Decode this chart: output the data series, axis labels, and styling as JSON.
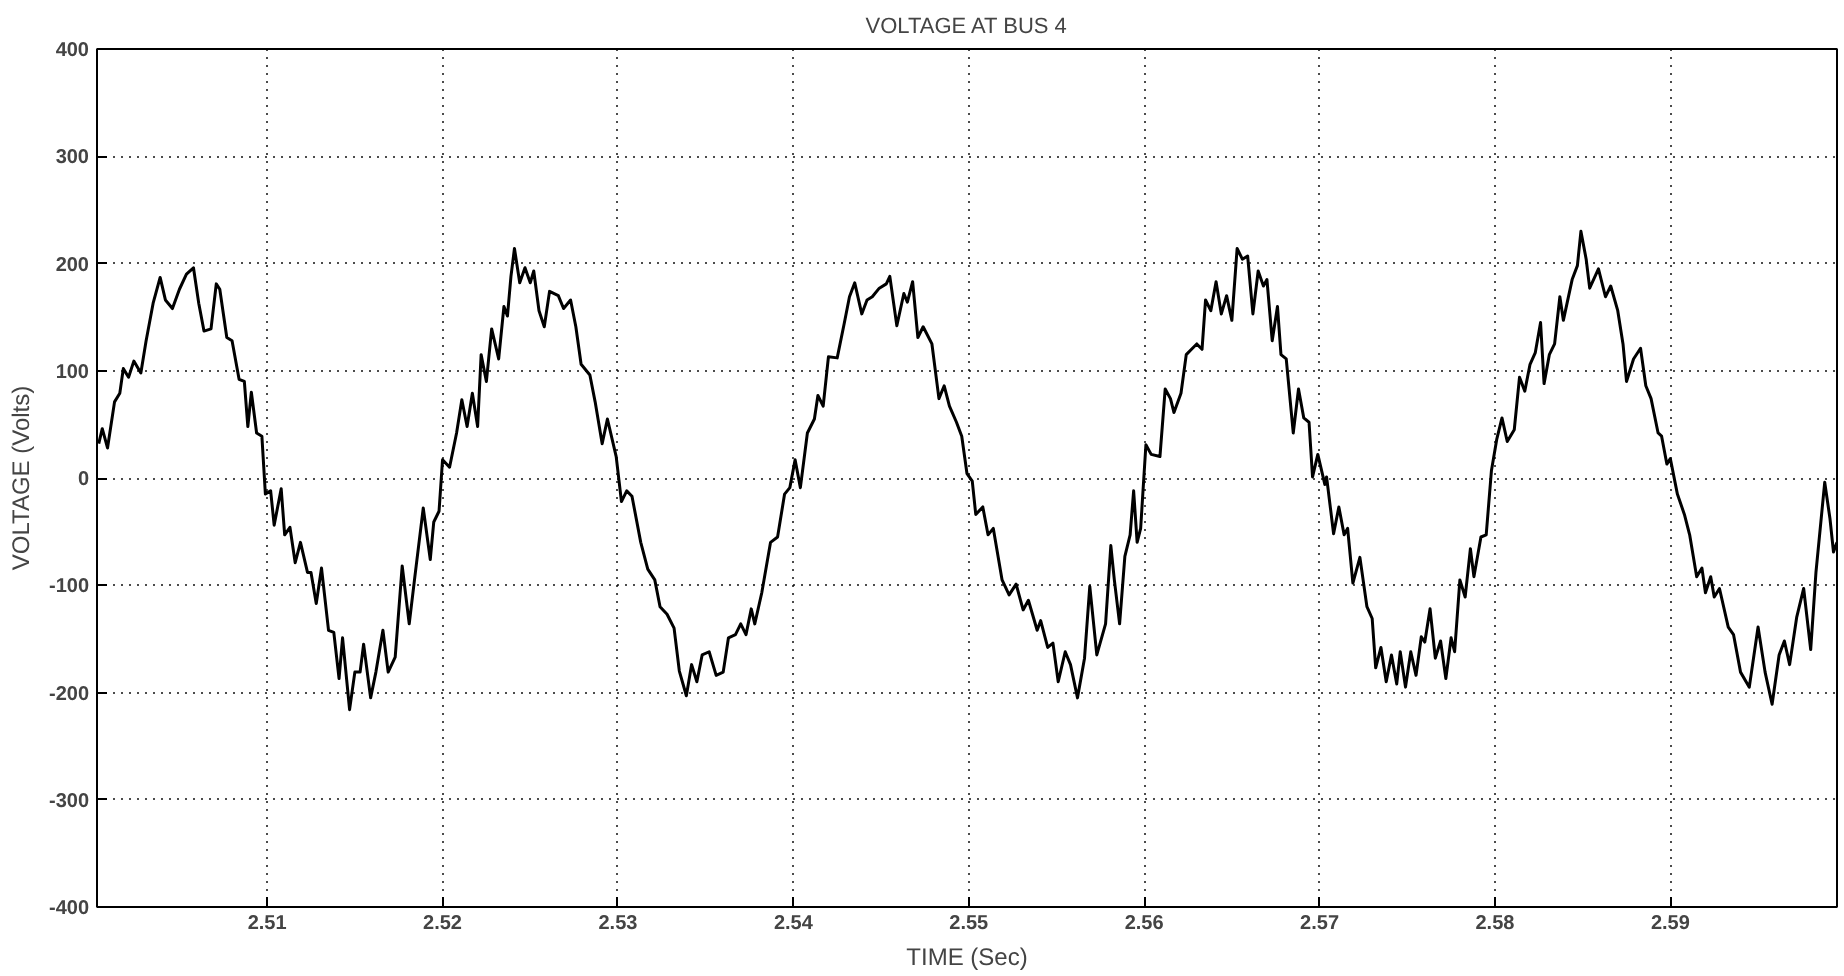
{
  "chart_data": {
    "type": "line",
    "title": "VOLTAGE AT BUS 4",
    "xlabel": "TIME (Sec)",
    "ylabel": "VOLTAGE (Volts)",
    "x": [
      2.5004,
      2.5006,
      2.5009,
      2.5013,
      2.5016,
      2.5018,
      2.5021,
      2.5024,
      2.5028,
      2.5031,
      2.5035,
      2.5039,
      2.5042,
      2.5046,
      2.505,
      2.5054,
      2.5058,
      2.5061,
      2.5064,
      2.5068,
      2.5071,
      2.5073,
      2.5077,
      2.508,
      2.5084,
      2.5087,
      2.5089,
      2.5091,
      2.5094,
      2.5097,
      2.5099,
      2.5102,
      2.5104,
      2.5108,
      2.511,
      2.5113,
      2.5116,
      2.5119,
      2.5123,
      2.5125,
      2.5128,
      2.5131,
      2.5135,
      2.5138,
      2.5141,
      2.5143,
      2.5147,
      2.515,
      2.5153,
      2.5155,
      2.5159,
      2.5162,
      2.5166,
      2.5169,
      2.5173,
      2.5177,
      2.5181,
      2.5184,
      2.5189,
      2.5193,
      2.5195,
      2.5198,
      2.52,
      2.5204,
      2.5208,
      2.5211,
      2.5214,
      2.5217,
      2.522,
      2.5222,
      2.5225,
      2.5228,
      2.5232,
      2.5235,
      2.5237,
      2.5239,
      2.5241,
      2.5244,
      2.5247,
      2.525,
      2.5252,
      2.5255,
      2.5258,
      2.5261,
      2.5266,
      2.5269,
      2.5273,
      2.5276,
      2.5279,
      2.5284,
      2.5287,
      2.5291,
      2.5294,
      2.5299,
      2.5302,
      2.5305,
      2.5308,
      2.5313,
      2.5317,
      2.5321,
      2.5324,
      2.5328,
      2.5332,
      2.5335,
      2.5339,
      2.5342,
      2.5345,
      2.5348,
      2.5352,
      2.5356,
      2.536,
      2.5363,
      2.5367,
      2.537,
      2.5373,
      2.5376,
      2.5378,
      2.5382,
      2.5387,
      2.5391,
      2.5395,
      2.5398,
      2.5401,
      2.5404,
      2.5408,
      2.5412,
      2.5414,
      2.5417,
      2.542,
      2.5425,
      2.5429,
      2.5432,
      2.5435,
      2.5439,
      2.5442,
      2.5445,
      2.5449,
      2.5453,
      2.5455,
      2.5459,
      2.5463,
      2.5465,
      2.5468,
      2.5471,
      2.5474,
      2.5479,
      2.5483,
      2.5486,
      2.5489,
      2.5493,
      2.5496,
      2.5499,
      2.5502,
      2.5504,
      2.5508,
      2.5511,
      2.5514,
      2.5519,
      2.5523,
      2.5527,
      2.5531,
      2.5534,
      2.5539,
      2.5541,
      2.5545,
      2.5548,
      2.5551,
      2.5555,
      2.5558,
      2.5562,
      2.5566,
      2.5569,
      2.5573,
      2.5578,
      2.5581,
      2.5583,
      2.5586,
      2.5589,
      2.5592,
      2.5594,
      2.5596,
      2.5598,
      2.5601,
      2.5604,
      2.5609,
      2.5612,
      2.5615,
      2.5617,
      2.5621,
      2.5624,
      2.5627,
      2.563,
      2.5633,
      2.5635,
      2.5638,
      2.5641,
      2.5644,
      2.5647,
      2.565,
      2.5653,
      2.5656,
      2.5659,
      2.5662,
      2.5665,
      2.5668,
      2.567,
      2.5673,
      2.5676,
      2.5678,
      2.5681,
      2.5685,
      2.5688,
      2.5691,
      2.5694,
      2.5696,
      2.5699,
      2.5703,
      2.5704,
      2.5708,
      2.5711,
      2.5714,
      2.5716,
      2.5719,
      2.5723,
      2.5727,
      2.573,
      2.5732,
      2.5735,
      2.5738,
      2.5741,
      2.5744,
      2.5746,
      2.5749,
      2.5752,
      2.5755,
      2.5758,
      2.576,
      2.5763,
      2.5766,
      2.5769,
      2.5772,
      2.5775,
      2.5777,
      2.578,
      2.5783,
      2.5786,
      2.5788,
      2.5792,
      2.5795,
      2.5798,
      2.5801,
      2.5804,
      2.5807,
      2.5811,
      2.5814,
      2.5817,
      2.582,
      2.5823,
      2.5826,
      2.5828,
      2.5831,
      2.5834,
      2.5837,
      2.5839,
      2.5844,
      2.5847,
      2.5849,
      2.5852,
      2.5854,
      2.5859,
      2.5863,
      2.5866,
      2.587,
      2.5873,
      2.5875,
      2.5879,
      2.5883,
      2.5886,
      2.5889,
      2.5893,
      2.5895,
      2.5898,
      2.59,
      2.5904,
      2.5908,
      2.5911,
      2.5915,
      2.5918,
      2.592,
      2.5923,
      2.5925,
      2.5928,
      2.5933,
      2.5936,
      2.594,
      2.5945,
      2.595,
      2.5954,
      2.5958,
      2.5962,
      2.5965,
      2.5968,
      2.5972,
      2.5976,
      2.598,
      2.5983,
      2.5988,
      2.5991,
      2.5993,
      2.5995
    ],
    "series": [
      {
        "color": "#000000",
        "values": [
          32,
          46,
          28,
          71,
          79,
          102,
          94,
          109,
          98,
          128,
          163,
          187,
          166,
          158,
          176,
          190,
          196,
          163,
          137,
          139,
          181,
          176,
          131,
          128,
          92,
          90,
          48,
          80,
          42,
          39,
          -15,
          -12,
          -44,
          -10,
          -53,
          -46,
          -79,
          -60,
          -88,
          -88,
          -117,
          -84,
          -142,
          -144,
          -187,
          -149,
          -216,
          -181,
          -181,
          -155,
          -205,
          -181,
          -142,
          -181,
          -167,
          -82,
          -136,
          -95,
          -28,
          -76,
          -41,
          -31,
          17,
          10,
          42,
          73,
          48,
          79,
          48,
          115,
          90,
          139,
          111,
          160,
          151,
          188,
          214,
          182,
          196,
          182,
          193,
          156,
          141,
          174,
          170,
          158,
          166,
          141,
          106,
          96,
          71,
          32,
          55,
          20,
          -22,
          -12,
          -17,
          -60,
          -85,
          -95,
          -120,
          -127,
          -140,
          -180,
          -203,
          -174,
          -190,
          -165,
          -162,
          -184,
          -181,
          -149,
          -146,
          -136,
          -146,
          -122,
          -136,
          -107,
          -60,
          -55,
          -15,
          -9,
          17,
          -9,
          42,
          55,
          77,
          67,
          113,
          112,
          144,
          169,
          182,
          153,
          166,
          169,
          177,
          181,
          188,
          142,
          172,
          164,
          183,
          131,
          141,
          125,
          74,
          86,
          67,
          52,
          39,
          4,
          -3,
          -34,
          -27,
          -53,
          -47,
          -95,
          -109,
          -99,
          -123,
          -114,
          -142,
          -133,
          -158,
          -154,
          -190,
          -162,
          -174,
          -205,
          -168,
          -101,
          -165,
          -136,
          -63,
          -95,
          -136,
          -73,
          -53,
          -12,
          -60,
          -47,
          31,
          22,
          20,
          83,
          74,
          61,
          79,
          115,
          120,
          125,
          120,
          166,
          156,
          183,
          153,
          170,
          147,
          214,
          204,
          207,
          153,
          193,
          179,
          185,
          128,
          160,
          115,
          111,
          42,
          83,
          56,
          52,
          1,
          22,
          -6,
          1,
          -52,
          -27,
          -53,
          -47,
          -98,
          -74,
          -120,
          -131,
          -177,
          -158,
          -190,
          -165,
          -192,
          -162,
          -195,
          -162,
          -184,
          -148,
          -153,
          -122,
          -168,
          -152,
          -187,
          -149,
          -162,
          -95,
          -111,
          -66,
          -92,
          -55,
          -53,
          7,
          36,
          56,
          34,
          45,
          94,
          81,
          106,
          117,
          145,
          88,
          115,
          125,
          169,
          147,
          185,
          198,
          230,
          204,
          177,
          195,
          169,
          179,
          156,
          125,
          90,
          111,
          121,
          86,
          74,
          42,
          39,
          13,
          18,
          -15,
          -34,
          -53,
          -92,
          -84,
          -107,
          -92,
          -111,
          -103,
          -139,
          -146,
          -181,
          -195,
          -139,
          -181,
          -211,
          -165,
          -152,
          -174,
          -130,
          -103,
          -160,
          -88,
          -4,
          -38,
          -69,
          -60
        ]
      }
    ],
    "xlim": [
      2.5003,
      2.5995
    ],
    "ylim": [
      -400,
      400
    ],
    "xticks": [
      2.51,
      2.52,
      2.53,
      2.54,
      2.55,
      2.56,
      2.57,
      2.58,
      2.59
    ],
    "yticks": [
      -400,
      -300,
      -200,
      -100,
      0,
      100,
      200,
      300,
      400
    ],
    "grid": true,
    "line_style": "solid"
  }
}
